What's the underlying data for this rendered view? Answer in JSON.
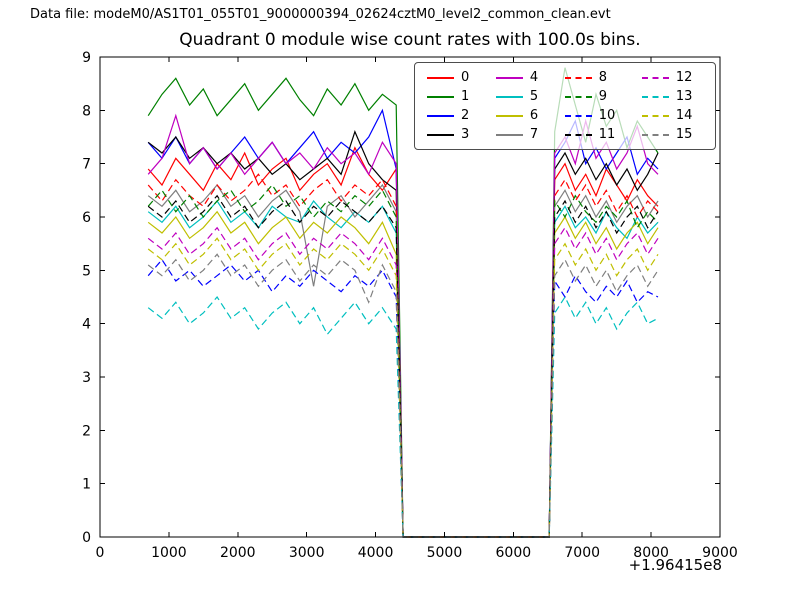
{
  "header": {
    "data_file_label": "Data file: modeM0/AS1T01_055T01_9000000394_02624cztM0_level2_common_clean.evt"
  },
  "chart_data": {
    "type": "line",
    "title": "Quadrant 0 module wise count rates with 100.0s bins.",
    "xlabel": "",
    "ylabel": "",
    "xlim": [
      0,
      9000
    ],
    "ylim": [
      0,
      9
    ],
    "xticks": [
      0,
      1000,
      2000,
      3000,
      4000,
      5000,
      6000,
      7000,
      8000,
      9000
    ],
    "yticks": [
      0,
      1,
      2,
      3,
      4,
      5,
      6,
      7,
      8,
      9
    ],
    "x_offset_text": "+1.96415e8",
    "grid": false,
    "legend_position": "upper center",
    "legend_columns": 4,
    "x": [
      700,
      900,
      1100,
      1300,
      1500,
      1700,
      1900,
      2100,
      2300,
      2500,
      2700,
      2900,
      3100,
      3300,
      3500,
      3700,
      3900,
      4100,
      4300,
      4400,
      6520,
      6600,
      6750,
      6900,
      7050,
      7200,
      7350,
      7500,
      7650,
      7800,
      7950,
      8100
    ],
    "series": [
      {
        "name": "0",
        "color": "#ff0000",
        "style": "solid",
        "values": [
          6.9,
          6.6,
          7.1,
          6.8,
          6.5,
          7.0,
          6.7,
          7.2,
          6.6,
          6.9,
          7.1,
          6.5,
          6.8,
          7.0,
          6.6,
          7.3,
          6.8,
          6.5,
          6.9,
          0,
          0,
          6.7,
          7.0,
          6.5,
          6.8,
          6.4,
          6.9,
          6.6,
          6.3,
          6.7,
          6.4,
          6.2
        ]
      },
      {
        "name": "1",
        "color": "#008000",
        "style": "solid",
        "values": [
          7.9,
          8.3,
          8.6,
          8.1,
          8.4,
          7.9,
          8.2,
          8.5,
          8.0,
          8.3,
          8.6,
          8.2,
          7.9,
          8.4,
          8.1,
          8.5,
          8.0,
          8.3,
          8.1,
          0,
          0,
          7.6,
          8.8,
          8.1,
          7.4,
          8.3,
          7.7,
          8.0,
          7.3,
          7.8,
          7.5,
          7.2
        ]
      },
      {
        "name": "2",
        "color": "#0000ff",
        "style": "solid",
        "values": [
          7.4,
          7.1,
          7.5,
          7.0,
          7.3,
          6.9,
          7.2,
          7.5,
          7.1,
          7.4,
          7.0,
          7.3,
          7.6,
          7.1,
          7.4,
          7.2,
          7.5,
          8.0,
          6.9,
          0,
          0,
          7.1,
          7.4,
          7.8,
          7.0,
          7.3,
          6.9,
          7.2,
          7.5,
          6.8,
          7.1,
          6.9
        ]
      },
      {
        "name": "3",
        "color": "#000000",
        "style": "solid",
        "values": [
          7.4,
          7.2,
          7.5,
          7.1,
          7.3,
          7.0,
          7.2,
          6.9,
          7.1,
          6.8,
          7.0,
          6.7,
          6.9,
          7.1,
          6.8,
          7.6,
          7.0,
          6.7,
          6.5,
          0,
          0,
          6.9,
          7.2,
          6.8,
          7.1,
          6.7,
          7.0,
          6.6,
          6.9,
          6.5,
          6.8,
          7.2
        ]
      },
      {
        "name": "4",
        "color": "#bf00bf",
        "style": "solid",
        "values": [
          6.8,
          7.1,
          7.9,
          7.0,
          7.3,
          6.9,
          7.2,
          6.8,
          7.1,
          7.4,
          7.0,
          7.2,
          6.9,
          7.3,
          7.0,
          7.2,
          6.8,
          7.4,
          7.0,
          0,
          0,
          7.2,
          7.5,
          7.0,
          7.8,
          7.1,
          7.4,
          6.9,
          7.2,
          7.7,
          7.0,
          6.8
        ]
      },
      {
        "name": "5",
        "color": "#00bfbf",
        "style": "solid",
        "values": [
          6.1,
          5.9,
          6.2,
          5.8,
          6.0,
          6.3,
          5.9,
          6.1,
          5.8,
          6.2,
          6.0,
          5.9,
          6.3,
          6.0,
          5.8,
          6.1,
          5.9,
          6.2,
          5.7,
          0,
          0,
          5.9,
          6.2,
          5.8,
          6.0,
          5.7,
          6.1,
          5.8,
          5.6,
          6.0,
          5.7,
          5.9
        ]
      },
      {
        "name": "6",
        "color": "#bfbf00",
        "style": "solid",
        "values": [
          5.9,
          5.7,
          6.0,
          5.6,
          5.8,
          6.1,
          5.7,
          5.9,
          5.5,
          5.8,
          6.0,
          5.6,
          5.9,
          5.7,
          6.0,
          5.8,
          5.5,
          5.9,
          5.3,
          0,
          0,
          5.7,
          6.0,
          5.6,
          5.9,
          5.5,
          5.8,
          5.4,
          5.7,
          5.9,
          5.5,
          5.8
        ]
      },
      {
        "name": "7",
        "color": "#7f7f7f",
        "style": "solid",
        "values": [
          6.4,
          6.2,
          6.5,
          6.1,
          6.3,
          6.6,
          6.2,
          6.4,
          6.0,
          6.3,
          6.5,
          6.1,
          4.7,
          6.2,
          6.4,
          6.0,
          6.3,
          6.6,
          6.1,
          0,
          0,
          6.2,
          6.5,
          6.1,
          6.4,
          6.0,
          6.3,
          5.9,
          6.2,
          6.4,
          6.0,
          6.3
        ]
      },
      {
        "name": "8",
        "color": "#ff0000",
        "style": "dashed",
        "values": [
          6.6,
          6.3,
          6.7,
          6.4,
          6.2,
          6.6,
          6.3,
          6.5,
          6.8,
          6.4,
          6.6,
          6.2,
          6.5,
          6.7,
          6.3,
          6.6,
          6.4,
          6.7,
          6.2,
          0,
          0,
          6.4,
          6.7,
          6.3,
          6.6,
          6.2,
          6.5,
          6.1,
          6.4,
          6.0,
          6.3,
          6.1
        ]
      },
      {
        "name": "9",
        "color": "#008000",
        "style": "dashed",
        "values": [
          6.2,
          6.5,
          6.1,
          6.4,
          6.0,
          6.3,
          6.5,
          6.1,
          6.3,
          6.6,
          6.2,
          6.4,
          6.0,
          6.3,
          6.1,
          6.4,
          6.2,
          6.5,
          6.0,
          0,
          0,
          6.3,
          6.0,
          6.4,
          6.1,
          5.9,
          6.2,
          6.0,
          6.3,
          5.8,
          6.1,
          5.9
        ]
      },
      {
        "name": "10",
        "color": "#0000ff",
        "style": "dashed",
        "values": [
          4.9,
          5.2,
          4.8,
          5.0,
          4.7,
          4.9,
          5.1,
          4.8,
          5.0,
          4.6,
          4.9,
          4.7,
          5.0,
          4.8,
          4.6,
          4.9,
          4.7,
          5.0,
          4.5,
          0,
          0,
          4.8,
          4.5,
          4.9,
          4.6,
          4.4,
          4.7,
          4.5,
          4.8,
          4.4,
          4.6,
          4.5
        ]
      },
      {
        "name": "11",
        "color": "#000000",
        "style": "dashed",
        "values": [
          6.2,
          6.0,
          6.3,
          5.9,
          6.1,
          6.4,
          6.0,
          6.2,
          5.8,
          6.1,
          6.3,
          5.9,
          6.2,
          6.0,
          6.3,
          6.1,
          5.9,
          6.2,
          5.8,
          0,
          0,
          6.0,
          6.3,
          5.9,
          6.2,
          5.8,
          6.1,
          5.7,
          6.0,
          6.2,
          5.8,
          6.1
        ]
      },
      {
        "name": "12",
        "color": "#bf00bf",
        "style": "dashed",
        "values": [
          5.6,
          5.4,
          5.7,
          5.3,
          5.5,
          5.8,
          5.4,
          5.6,
          5.2,
          5.5,
          5.7,
          5.3,
          5.6,
          5.4,
          5.7,
          5.5,
          5.2,
          5.6,
          5.1,
          0,
          0,
          5.5,
          5.8,
          5.4,
          5.7,
          5.3,
          5.6,
          5.2,
          5.5,
          5.7,
          5.3,
          5.6
        ]
      },
      {
        "name": "13",
        "color": "#00bfbf",
        "style": "dashed",
        "values": [
          4.3,
          4.1,
          4.4,
          4.0,
          4.2,
          4.5,
          4.1,
          4.3,
          3.9,
          4.2,
          4.4,
          4.0,
          4.3,
          3.8,
          4.1,
          4.4,
          4.0,
          4.3,
          3.9,
          0,
          0,
          4.2,
          4.5,
          4.1,
          4.4,
          4.0,
          4.3,
          3.9,
          4.2,
          4.4,
          4.0,
          4.1
        ]
      },
      {
        "name": "14",
        "color": "#bfbf00",
        "style": "dashed",
        "values": [
          5.4,
          5.2,
          5.5,
          5.1,
          5.3,
          5.6,
          5.2,
          5.4,
          5.0,
          5.3,
          5.5,
          5.1,
          5.4,
          5.2,
          5.5,
          5.3,
          5.0,
          5.4,
          4.9,
          0,
          0,
          5.2,
          5.5,
          5.1,
          5.4,
          5.0,
          5.3,
          4.9,
          5.2,
          5.4,
          5.0,
          5.3
        ]
      },
      {
        "name": "15",
        "color": "#7f7f7f",
        "style": "dashed",
        "values": [
          5.1,
          4.9,
          5.2,
          4.8,
          5.0,
          5.3,
          4.9,
          5.1,
          4.7,
          5.0,
          5.2,
          4.8,
          5.1,
          4.9,
          5.2,
          5.0,
          4.4,
          5.1,
          4.6,
          0,
          0,
          4.9,
          5.2,
          4.8,
          5.1,
          4.7,
          5.0,
          4.6,
          4.9,
          5.1,
          4.7,
          5.0
        ]
      }
    ]
  },
  "colors": {
    "axis": "#000000",
    "background": "#ffffff",
    "legend_border": "#4d4d4d"
  }
}
